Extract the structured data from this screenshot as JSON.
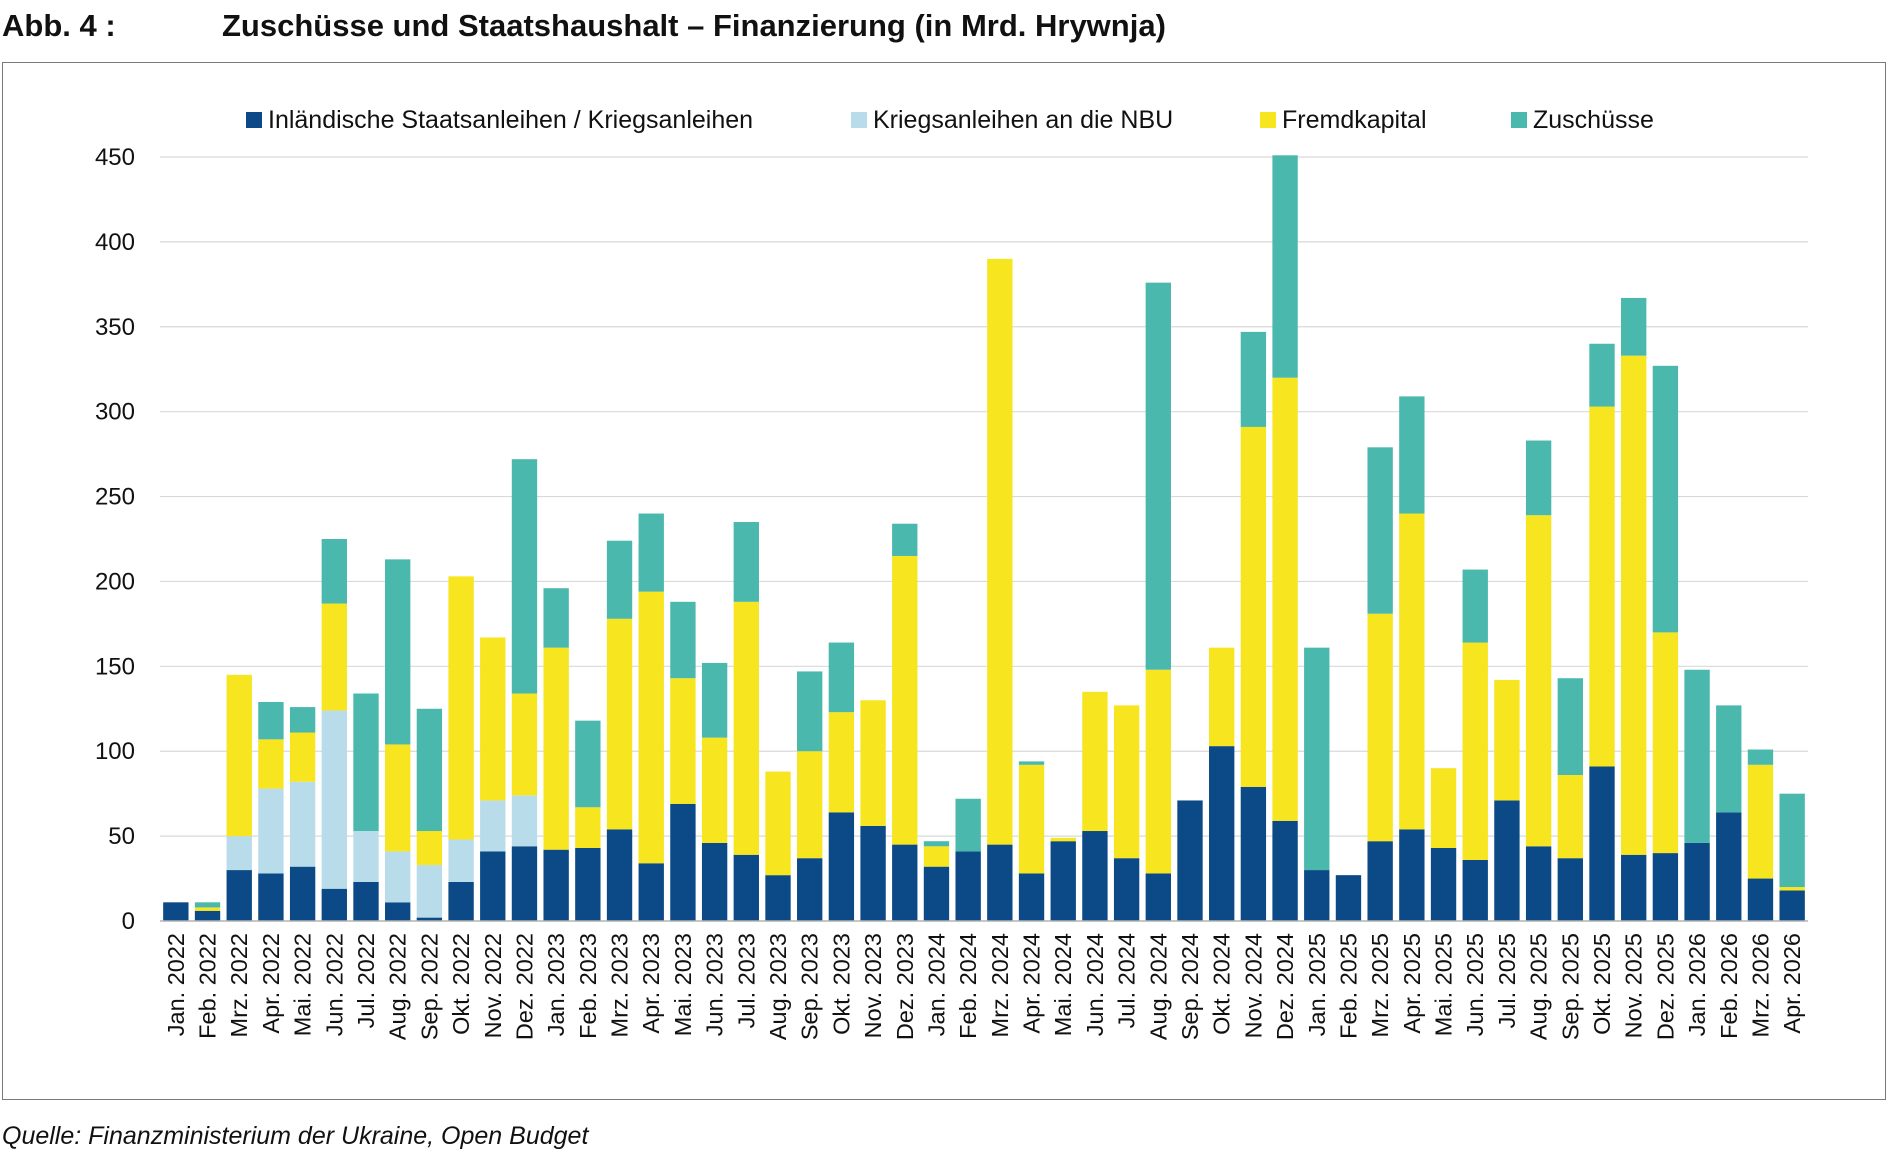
{
  "figure": {
    "label": "Abb. 4 :",
    "title": "Zuschüsse und Staatshaushalt – Finanzierung (in Mrd. Hrywnja)",
    "source": "Quelle: Finanzministerium der Ukraine, Open Budget"
  },
  "chart_data": {
    "type": "bar",
    "stacked": true,
    "title": "Zuschüsse und Staatshaushalt – Finanzierung (in Mrd. Hrywnja)",
    "xlabel": "",
    "ylabel": "",
    "ylim": [
      0,
      450
    ],
    "yticks": [
      0,
      50,
      100,
      150,
      200,
      250,
      300,
      350,
      400,
      450
    ],
    "grid": true,
    "legend_position": "top",
    "categories": [
      "Jan. 2022",
      "Feb. 2022",
      "Mrz. 2022",
      "Apr. 2022",
      "Mai. 2022",
      "Jun. 2022",
      "Jul. 2022",
      "Aug. 2022",
      "Sep. 2022",
      "Okt. 2022",
      "Nov. 2022",
      "Dez. 2022",
      "Jan. 2023",
      "Feb. 2023",
      "Mrz. 2023",
      "Apr. 2023",
      "Mai. 2023",
      "Jun. 2023",
      "Jul. 2023",
      "Aug. 2023",
      "Sep. 2023",
      "Okt. 2023",
      "Nov. 2023",
      "Dez. 2023",
      "Jan. 2024",
      "Feb. 2024",
      "Mrz. 2024",
      "Apr. 2024",
      "Mai. 2024",
      "Jun. 2024",
      "Jul. 2024",
      "Aug. 2024",
      "Sep. 2024",
      "Okt. 2024",
      "Nov. 2024",
      "Dez. 2024",
      "Jan. 2025",
      "Feb. 2025",
      "Mrz. 2025",
      "Apr. 2025",
      "Mai. 2025",
      "Jun. 2025",
      "Jul. 2025",
      "Aug. 2025",
      "Sep. 2025",
      "Okt. 2025",
      "Nov. 2025",
      "Dez. 2025",
      "Jan. 2026",
      "Feb. 2026",
      "Mrz. 2026",
      "Apr. 2026"
    ],
    "series": [
      {
        "name": "Inländische Staatsanleihen / Kriegsanleihen",
        "color": "#0b4a86",
        "values": [
          11,
          6,
          30,
          28,
          32,
          19,
          23,
          11,
          2,
          23,
          41,
          44,
          42,
          43,
          54,
          34,
          69,
          46,
          39,
          27,
          37,
          64,
          56,
          45,
          32,
          41,
          45,
          28,
          47,
          53,
          37,
          28,
          71,
          103,
          79,
          59,
          30,
          27,
          47,
          54,
          43,
          36,
          71,
          44,
          37,
          91,
          39,
          40,
          46,
          64,
          25,
          18
        ]
      },
      {
        "name": "Kriegsanleihen an die NBU",
        "color": "#b9dcea",
        "values": [
          0,
          0,
          20,
          50,
          50,
          105,
          30,
          30,
          31,
          25,
          30,
          30,
          0,
          0,
          0,
          0,
          0,
          0,
          0,
          0,
          0,
          0,
          0,
          0,
          0,
          0,
          0,
          0,
          0,
          0,
          0,
          0,
          0,
          0,
          0,
          0,
          0,
          0,
          0,
          0,
          0,
          0,
          0,
          0,
          0,
          0,
          0,
          0,
          0,
          0,
          0,
          0
        ]
      },
      {
        "name": "Fremdkapital",
        "color": "#f6e51f",
        "values": [
          0,
          2,
          95,
          29,
          29,
          63,
          0,
          63,
          20,
          155,
          96,
          60,
          119,
          24,
          124,
          160,
          74,
          62,
          149,
          61,
          63,
          59,
          74,
          170,
          12,
          0,
          345,
          64,
          2,
          82,
          90,
          120,
          0,
          58,
          212,
          261,
          0,
          0,
          134,
          186,
          47,
          128,
          71,
          195,
          49,
          212,
          294,
          130,
          0,
          0,
          67,
          2
        ]
      },
      {
        "name": "Zuschüsse",
        "color": "#4bb8ad",
        "values": [
          0,
          3,
          0,
          22,
          15,
          38,
          81,
          109,
          72,
          0,
          0,
          138,
          35,
          51,
          46,
          46,
          45,
          44,
          47,
          0,
          47,
          41,
          0,
          19,
          3,
          31,
          0,
          2,
          0,
          0,
          0,
          228,
          0,
          0,
          56,
          131,
          131,
          0,
          98,
          69,
          0,
          43,
          0,
          44,
          57,
          37,
          34,
          157,
          102,
          63,
          9,
          55
        ]
      }
    ]
  }
}
